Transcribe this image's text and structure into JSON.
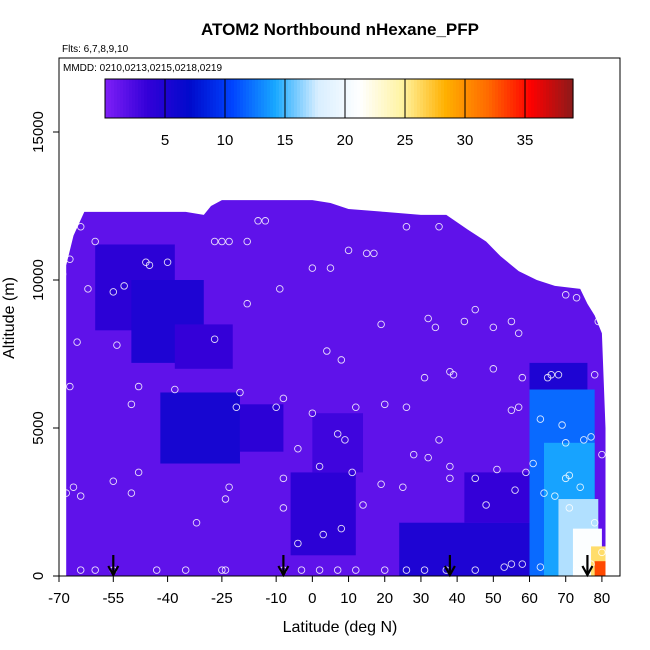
{
  "chart_data": {
    "type": "heatmap",
    "title": "ATOM2 Northbound nHexane_PFP",
    "flights_note": "Flts: 6,7,8,9,10",
    "dates_note": "MMDD: 0210,0213,0215,0218,0219",
    "xlabel": "Latitude (deg N)",
    "ylabel": "Altitude (m)",
    "xlim": [
      -70,
      85
    ],
    "ylim": [
      0,
      17500
    ],
    "x_ticks": [
      -70,
      -55,
      -40,
      -25,
      -10,
      0,
      10,
      20,
      30,
      40,
      50,
      60,
      70,
      80
    ],
    "y_ticks": [
      0,
      5000,
      10000,
      15000
    ],
    "colorbar": {
      "min": 0,
      "max": 39,
      "ticks": [
        5,
        10,
        15,
        20,
        25,
        30,
        35
      ],
      "colors": [
        "#7f1ff7",
        "#3300d8",
        "#000acc",
        "#0044ff",
        "#18a8ff",
        "#d8eeff",
        "#ffffff",
        "#fff3a0",
        "#ffb000",
        "#ff6a00",
        "#ff0000",
        "#8b1a1a"
      ]
    },
    "profile_markers_lat": [
      -55,
      -8,
      38,
      76
    ],
    "coverage_top": [
      [
        -68,
        10500
      ],
      [
        -66,
        11500
      ],
      [
        -63,
        12300
      ],
      [
        -52,
        12300
      ],
      [
        -45,
        12300
      ],
      [
        -35,
        12300
      ],
      [
        -30,
        12200
      ],
      [
        -28,
        12500
      ],
      [
        -25,
        12700
      ],
      [
        -15,
        12700
      ],
      [
        0,
        12700
      ],
      [
        5,
        12600
      ],
      [
        10,
        12400
      ],
      [
        20,
        12300
      ],
      [
        30,
        12200
      ],
      [
        37,
        12200
      ],
      [
        43,
        11700
      ],
      [
        48,
        11300
      ],
      [
        52,
        10800
      ],
      [
        57,
        10300
      ],
      [
        62,
        10000
      ],
      [
        67,
        9800
      ],
      [
        74,
        9700
      ],
      [
        76,
        9200
      ],
      [
        78,
        8800
      ],
      [
        80,
        8200
      ],
      [
        81,
        5000
      ],
      [
        81,
        0
      ]
    ],
    "regions": [
      {
        "lat_min": -70,
        "lat_max": 81,
        "alt_min": 0,
        "alt_max": 12800,
        "value": 1.5
      },
      {
        "lat_min": -60,
        "lat_max": -38,
        "alt_min": 8300,
        "alt_max": 11200,
        "value": 4
      },
      {
        "lat_min": -50,
        "lat_max": -30,
        "alt_min": 7200,
        "alt_max": 10000,
        "value": 5
      },
      {
        "lat_min": -38,
        "lat_max": -22,
        "alt_min": 7000,
        "alt_max": 8500,
        "value": 3.5
      },
      {
        "lat_min": -42,
        "lat_max": -20,
        "alt_min": 3800,
        "alt_max": 6200,
        "value": 5.5
      },
      {
        "lat_min": -20,
        "lat_max": -8,
        "alt_min": 4200,
        "alt_max": 5800,
        "value": 4
      },
      {
        "lat_min": -6,
        "lat_max": 12,
        "alt_min": 700,
        "alt_max": 3500,
        "value": 4
      },
      {
        "lat_min": 0,
        "lat_max": 14,
        "alt_min": 3500,
        "alt_max": 5500,
        "value": 3
      },
      {
        "lat_min": 24,
        "lat_max": 62,
        "alt_min": 0,
        "alt_max": 1800,
        "value": 5
      },
      {
        "lat_min": 42,
        "lat_max": 60,
        "alt_min": 1800,
        "alt_max": 3500,
        "value": 3.5
      },
      {
        "lat_min": 60,
        "lat_max": 76,
        "alt_min": 5800,
        "alt_max": 7200,
        "value": 5
      },
      {
        "lat_min": 60,
        "lat_max": 78,
        "alt_min": 0,
        "alt_max": 6300,
        "value": 12
      },
      {
        "lat_min": 64,
        "lat_max": 78,
        "alt_min": 0,
        "alt_max": 4500,
        "value": 14
      },
      {
        "lat_min": 68,
        "lat_max": 79,
        "alt_min": 0,
        "alt_max": 2600,
        "value": 17
      },
      {
        "lat_min": 72,
        "lat_max": 80,
        "alt_min": 0,
        "alt_max": 1600,
        "value": 21
      },
      {
        "lat_min": 77,
        "lat_max": 81,
        "alt_min": 0,
        "alt_max": 1000,
        "value": 26
      },
      {
        "lat_min": 78,
        "lat_max": 81,
        "alt_min": 0,
        "alt_max": 500,
        "value": 33
      }
    ],
    "samples": [
      [
        -64,
        11800
      ],
      [
        -60,
        11300
      ],
      [
        -67,
        10700
      ],
      [
        -69,
        10200
      ],
      [
        -62,
        9700
      ],
      [
        -55,
        9600
      ],
      [
        -52,
        9800
      ],
      [
        -46,
        10600
      ],
      [
        -45,
        10500
      ],
      [
        -40,
        10600
      ],
      [
        -27,
        11300
      ],
      [
        -25,
        11300
      ],
      [
        -23,
        11300
      ],
      [
        -18,
        11300
      ],
      [
        -15,
        12000
      ],
      [
        -13,
        12000
      ],
      [
        -65,
        7900
      ],
      [
        -54,
        7800
      ],
      [
        -27,
        8000
      ],
      [
        -18,
        9200
      ],
      [
        -9,
        9700
      ],
      [
        0,
        10400
      ],
      [
        5,
        10400
      ],
      [
        10,
        11000
      ],
      [
        15,
        10900
      ],
      [
        17,
        10900
      ],
      [
        26,
        11800
      ],
      [
        35,
        11800
      ],
      [
        19,
        8500
      ],
      [
        32,
        8700
      ],
      [
        34,
        8400
      ],
      [
        42,
        8600
      ],
      [
        45,
        9000
      ],
      [
        50,
        8400
      ],
      [
        55,
        8600
      ],
      [
        57,
        8200
      ],
      [
        70,
        9500
      ],
      [
        73,
        9400
      ],
      [
        79,
        8600
      ],
      [
        -67,
        6400
      ],
      [
        -48,
        6400
      ],
      [
        -50,
        5800
      ],
      [
        -38,
        6300
      ],
      [
        -20,
        6200
      ],
      [
        -21,
        5700
      ],
      [
        -10,
        5700
      ],
      [
        -8,
        6000
      ],
      [
        0,
        5500
      ],
      [
        4,
        7600
      ],
      [
        8,
        7300
      ],
      [
        12,
        5700
      ],
      [
        7,
        4800
      ],
      [
        9,
        4600
      ],
      [
        20,
        5800
      ],
      [
        26,
        5700
      ],
      [
        31,
        6700
      ],
      [
        38,
        6900
      ],
      [
        39,
        6800
      ],
      [
        50,
        7000
      ],
      [
        55,
        5600
      ],
      [
        58,
        6700
      ],
      [
        65,
        6700
      ],
      [
        66,
        6800
      ],
      [
        68,
        6800
      ],
      [
        78,
        6800
      ],
      [
        57,
        5700
      ],
      [
        63,
        5300
      ],
      [
        69,
        5100
      ],
      [
        75,
        4600
      ],
      [
        77,
        4700
      ],
      [
        70,
        4500
      ],
      [
        -48,
        3500
      ],
      [
        -50,
        2800
      ],
      [
        -55,
        3200
      ],
      [
        -66,
        3000
      ],
      [
        -68,
        2800
      ],
      [
        -64,
        2700
      ],
      [
        -23,
        3000
      ],
      [
        -24,
        2600
      ],
      [
        -8,
        3300
      ],
      [
        -4,
        4300
      ],
      [
        2,
        3700
      ],
      [
        11,
        3500
      ],
      [
        14,
        2400
      ],
      [
        19,
        3100
      ],
      [
        25,
        3000
      ],
      [
        28,
        4100
      ],
      [
        32,
        4000
      ],
      [
        35,
        4600
      ],
      [
        38,
        3700
      ],
      [
        38,
        3300
      ],
      [
        45,
        3300
      ],
      [
        51,
        3600
      ],
      [
        48,
        2400
      ],
      [
        56,
        2900
      ],
      [
        59,
        3500
      ],
      [
        61,
        3800
      ],
      [
        64,
        2800
      ],
      [
        67,
        2700
      ],
      [
        70,
        3300
      ],
      [
        71,
        3400
      ],
      [
        74,
        3000
      ],
      [
        71,
        2300
      ],
      [
        78,
        1800
      ],
      [
        80,
        4100
      ],
      [
        -32,
        1800
      ],
      [
        -8,
        2300
      ],
      [
        -4,
        1100
      ],
      [
        3,
        1400
      ],
      [
        8,
        1600
      ],
      [
        -64,
        200
      ],
      [
        -60,
        200
      ],
      [
        -55,
        200
      ],
      [
        -43,
        200
      ],
      [
        -35,
        200
      ],
      [
        -25,
        200
      ],
      [
        -24,
        200
      ],
      [
        -8,
        200
      ],
      [
        -3,
        200
      ],
      [
        2,
        200
      ],
      [
        7,
        200
      ],
      [
        12,
        200
      ],
      [
        20,
        200
      ],
      [
        26,
        200
      ],
      [
        31,
        200
      ],
      [
        37,
        200
      ],
      [
        45,
        200
      ],
      [
        53,
        300
      ],
      [
        55,
        400
      ],
      [
        58,
        400
      ],
      [
        63,
        300
      ],
      [
        73,
        200
      ],
      [
        77,
        400
      ],
      [
        80,
        800
      ]
    ]
  }
}
